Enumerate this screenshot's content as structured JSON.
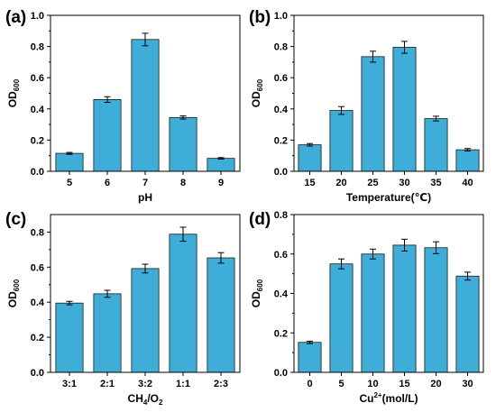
{
  "bar_color": "#3EAED8",
  "chart_data": [
    {
      "type": "bar",
      "panel": "(a)",
      "categories": [
        "5",
        "6",
        "7",
        "8",
        "9"
      ],
      "values": [
        0.115,
        0.46,
        0.845,
        0.345,
        0.083
      ],
      "errors": [
        0.006,
        0.018,
        0.04,
        0.01,
        0.005
      ],
      "xlabel": "pH",
      "ylabel": "OD",
      "ylabel_sub": "600",
      "ylim": [
        0,
        1.0
      ],
      "yticks": [
        "0.0",
        "0.2",
        "0.4",
        "0.6",
        "0.8",
        "1.0"
      ],
      "grid": false
    },
    {
      "type": "bar",
      "panel": "(b)",
      "categories": [
        "15",
        "20",
        "25",
        "30",
        "35",
        "40"
      ],
      "values": [
        0.17,
        0.39,
        0.735,
        0.795,
        0.338,
        0.138
      ],
      "errors": [
        0.008,
        0.025,
        0.035,
        0.038,
        0.015,
        0.008
      ],
      "xlabel": "Temperature(℃)",
      "ylabel": "OD",
      "ylabel_sub": "600",
      "ylim": [
        0,
        1.0
      ],
      "yticks": [
        "0.0",
        "0.2",
        "0.4",
        "0.6",
        "0.8",
        "1.0"
      ],
      "grid": false
    },
    {
      "type": "bar",
      "panel": "(c)",
      "categories": [
        "3:1",
        "2:1",
        "3:2",
        "1:1",
        "2:3"
      ],
      "values": [
        0.395,
        0.448,
        0.592,
        0.788,
        0.653
      ],
      "errors": [
        0.01,
        0.02,
        0.025,
        0.04,
        0.03
      ],
      "xlabel": "CH",
      "xlabel_sub1": "4",
      "xlabel_mid": "/O",
      "xlabel_sub2": "2",
      "ylabel": "OD",
      "ylabel_sub": "600",
      "ylim": [
        0,
        0.9
      ],
      "yticks": [
        "0.0",
        "0.2",
        "0.4",
        "0.6",
        "0.8"
      ],
      "grid": false
    },
    {
      "type": "bar",
      "panel": "(d)",
      "categories": [
        "0",
        "5",
        "10",
        "15",
        "20",
        "30"
      ],
      "values": [
        0.152,
        0.55,
        0.6,
        0.645,
        0.632,
        0.488
      ],
      "errors": [
        0.006,
        0.025,
        0.025,
        0.03,
        0.03,
        0.02
      ],
      "xlabel": "Cu",
      "xlabel_sup": "2+",
      "xlabel_rest": "(mol/L)",
      "ylabel": "OD",
      "ylabel_sub": "600",
      "ylim": [
        0,
        0.8
      ],
      "yticks": [
        "0.0",
        "0.2",
        "0.4",
        "0.6",
        "0.8"
      ],
      "grid": false
    }
  ]
}
